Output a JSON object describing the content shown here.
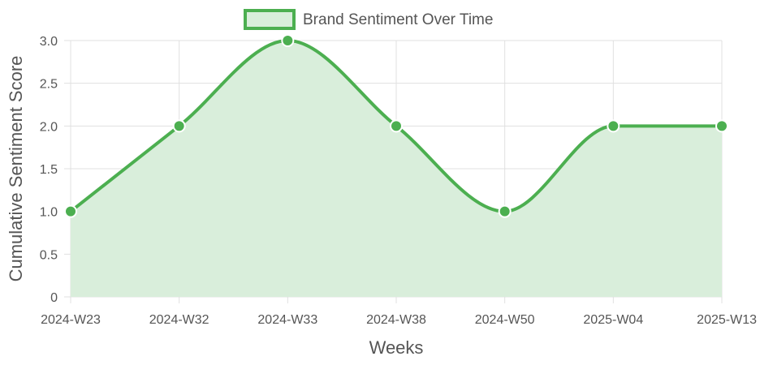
{
  "chart_data": {
    "type": "area",
    "categories": [
      "2024-W23",
      "2024-W32",
      "2024-W33",
      "2024-W38",
      "2024-W50",
      "2025-W04",
      "2025-W13"
    ],
    "series": [
      {
        "name": "Brand Sentiment Over Time",
        "values": [
          1.0,
          2.0,
          3.0,
          2.0,
          1.0,
          2.0,
          2.0
        ],
        "color": "#4caf50",
        "fill_color": "#d9eedb"
      }
    ],
    "xlabel": "Weeks",
    "ylabel": "Cumulative Sentiment Score",
    "ylim": [
      0,
      3
    ],
    "yticks": [
      "0",
      "0.5",
      "1.0",
      "1.5",
      "2.0",
      "2.5",
      "3.0"
    ],
    "ytick_values": [
      0,
      0.5,
      1.0,
      1.5,
      2.0,
      2.5,
      3.0
    ],
    "grid": true,
    "legend_position": "top-center",
    "smooth": true
  }
}
